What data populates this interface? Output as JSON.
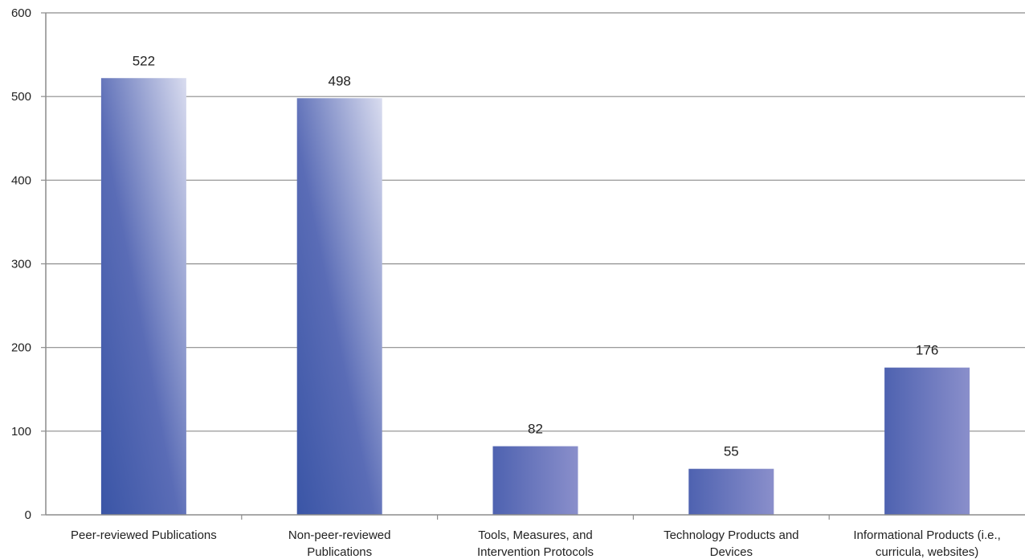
{
  "chart_data": {
    "type": "bar",
    "categories": [
      [
        "Peer-reviewed Publications"
      ],
      [
        "Non-peer-reviewed",
        "Publications"
      ],
      [
        "Tools, Measures, and",
        "Intervention Protocols"
      ],
      [
        "Technology Products and",
        "Devices"
      ],
      [
        "Informational Products (i.e.,",
        "curricula, websites)"
      ]
    ],
    "values": [
      522,
      498,
      82,
      55,
      176
    ],
    "value_labels": [
      "522",
      "498",
      "82",
      "55",
      "176"
    ],
    "ylim": [
      0,
      600
    ],
    "yticks": [
      0,
      100,
      200,
      300,
      400,
      500,
      600
    ],
    "ytick_labels": [
      "0",
      "100",
      "200",
      "300",
      "400",
      "500",
      "600"
    ],
    "title": "",
    "xlabel": "",
    "ylabel": "",
    "grid": true,
    "legend": "none",
    "colors": {
      "bar_dark": "#3a55a6",
      "bar_mid": "#7f86c4",
      "bar_light": "#d9dcef",
      "bar_accent": "#3f79c0",
      "grid": "#8c8c8c",
      "axis": "#8c8c8c"
    }
  }
}
